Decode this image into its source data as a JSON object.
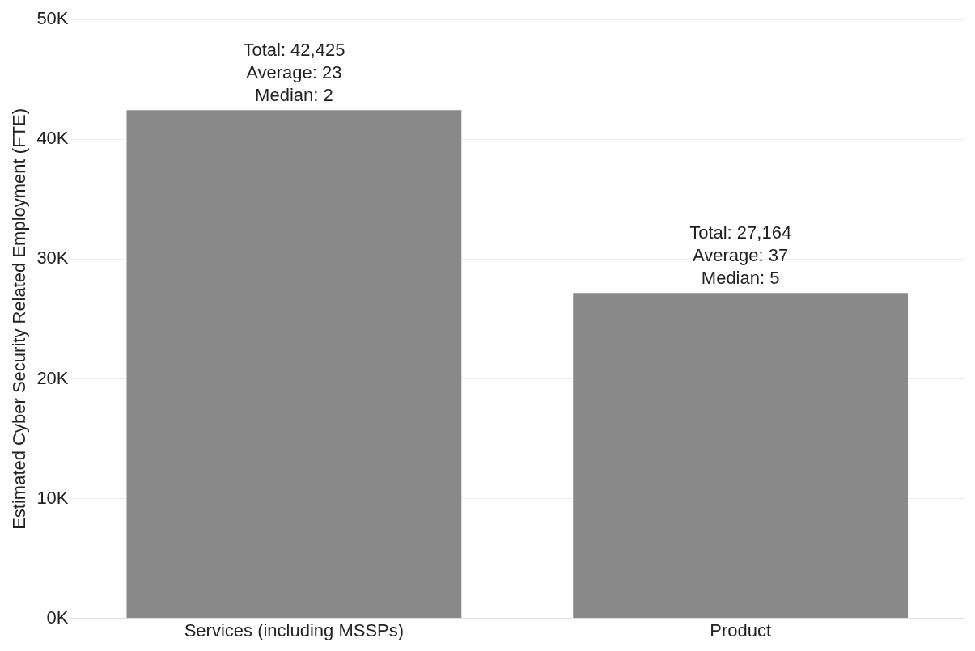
{
  "chart_data": {
    "type": "bar",
    "ylabel": "Estimated Cyber Security Related Employment (FTE)",
    "categories": [
      "Services (including MSSPs)",
      "Product"
    ],
    "values": [
      42425,
      27164
    ],
    "value_labels": [
      "Total: 42,425\nAverage: 23\nMedian: 2",
      "Total: 27,164\nAverage: 37\nMedian: 5"
    ],
    "color": "#898989",
    "ylim": [
      0,
      50000
    ],
    "yticks": [
      {
        "value": 0,
        "label": "0K"
      },
      {
        "value": 10000,
        "label": "10K"
      },
      {
        "value": 20000,
        "label": "20K"
      },
      {
        "value": 30000,
        "label": "30K"
      },
      {
        "value": 40000,
        "label": "40K"
      },
      {
        "value": 50000,
        "label": "50K"
      }
    ],
    "grid": "y",
    "legend": false
  }
}
